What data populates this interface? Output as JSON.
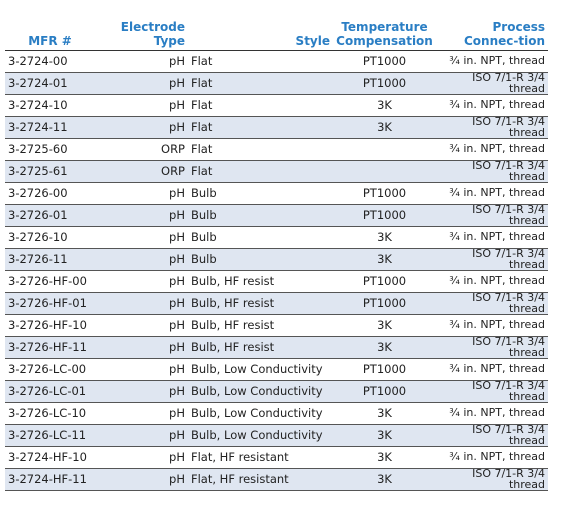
{
  "table": {
    "header": [
      "MFR #",
      "Electrode Type",
      "Style",
      "Temperature Compensation",
      "Process Connec-tion"
    ],
    "rows": [
      [
        "3-2724-00",
        "pH",
        "Flat",
        "PT1000",
        "¾ in. NPT, thread"
      ],
      [
        "3-2724-01",
        "pH",
        "Flat",
        "PT1000",
        "ISO 7/1-R 3/4 thread"
      ],
      [
        "3-2724-10",
        "pH",
        "Flat",
        "3K",
        "¾ in. NPT, thread"
      ],
      [
        "3-2724-11",
        "pH",
        "Flat",
        "3K",
        "ISO 7/1-R 3/4 thread"
      ],
      [
        "3-2725-60",
        "ORP",
        "Flat",
        null,
        "¾ in. NPT, thread"
      ],
      [
        "3-2725-61",
        "ORP",
        "Flat",
        null,
        "ISO 7/1-R 3/4 thread"
      ],
      [
        "3-2726-00",
        "pH",
        "Bulb",
        "PT1000",
        "¾ in. NPT, thread"
      ],
      [
        "3-2726-01",
        "pH",
        "Bulb",
        "PT1000",
        "ISO 7/1-R 3/4 thread"
      ],
      [
        "3-2726-10",
        "pH",
        "Bulb",
        "3K",
        "¾ in. NPT, thread"
      ],
      [
        "3-2726-11",
        "pH",
        "Bulb",
        "3K",
        "ISO 7/1-R 3/4 thread"
      ],
      [
        "3-2726-HF-00",
        "pH",
        "Bulb, HF resist",
        "PT1000",
        "¾ in. NPT, thread"
      ],
      [
        "3-2726-HF-01",
        "pH",
        "Bulb, HF resist",
        "PT1000",
        "ISO 7/1-R 3/4 thread"
      ],
      [
        "3-2726-HF-10",
        "pH",
        "Bulb, HF resist",
        "3K",
        "¾ in. NPT, thread"
      ],
      [
        "3-2726-HF-11",
        "pH",
        "Bulb, HF resist",
        "3K",
        "ISO 7/1-R 3/4 thread"
      ],
      [
        "3-2726-LC-00",
        "pH",
        "Bulb, Low Conductivity",
        "PT1000",
        "¾ in. NPT, thread"
      ],
      [
        "3-2726-LC-01",
        "pH",
        "Bulb, Low Conductivity",
        "PT1000",
        "ISO 7/1-R 3/4 thread"
      ],
      [
        "3-2726-LC-10",
        "pH",
        "Bulb, Low Conductivity",
        "3K",
        "¾ in. NPT, thread"
      ],
      [
        "3-2726-LC-11",
        "pH",
        "Bulb, Low Conductivity",
        "3K",
        "ISO 7/1-R 3/4 thread"
      ],
      [
        "3-2724-HF-10",
        "pH",
        "Flat, HF resistant",
        "3K",
        "¾ in. NPT, thread"
      ],
      [
        "3-2724-HF-11",
        "pH",
        "Flat, HF resistant",
        "3K",
        "ISO 7/1-R 3/4 thread"
      ]
    ]
  }
}
